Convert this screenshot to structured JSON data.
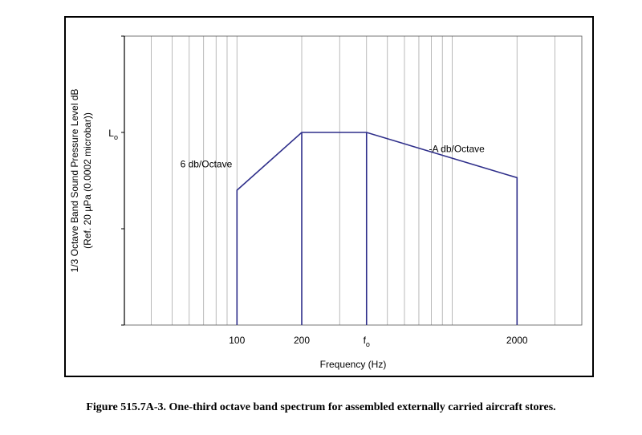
{
  "caption": "Figure 515.7A-3.  One-third octave band spectrum for assembled externally carried aircraft stores.",
  "chart_data": {
    "type": "line",
    "title": "",
    "xlabel": "Frequency (Hz)",
    "ylabel_line1": "1/3 Octave Band Sound Pressure Level dB",
    "ylabel_line2": "(Ref. 20 µPa  (0.0002 microbar))",
    "x_scale": "log",
    "xlim": [
      30,
      4000
    ],
    "ylim": [
      0,
      3
    ],
    "grid": "vertical",
    "x_tick_labels": [
      {
        "value": 100,
        "label": "100"
      },
      {
        "value": 200,
        "label": "200"
      },
      {
        "value": 400,
        "label": "f",
        "subscript": "o"
      },
      {
        "value": 2000,
        "label": "2000"
      }
    ],
    "y_tick_labels": [
      {
        "value": 2,
        "label": "L",
        "subscript": "o"
      }
    ],
    "y_ticks": [
      0,
      1,
      2,
      3
    ],
    "series": [
      {
        "x": [
          100,
          100,
          200,
          400,
          2000,
          2000
        ],
        "y": [
          0,
          1.4,
          2,
          2,
          1.53,
          0
        ],
        "color": "#2e2e8a"
      }
    ],
    "annotations": [
      {
        "text": "6 db/Octave",
        "x": 95,
        "y": 1.67
      },
      {
        "text": "-A db/Octave",
        "x": 1050,
        "y": 1.83
      }
    ]
  }
}
